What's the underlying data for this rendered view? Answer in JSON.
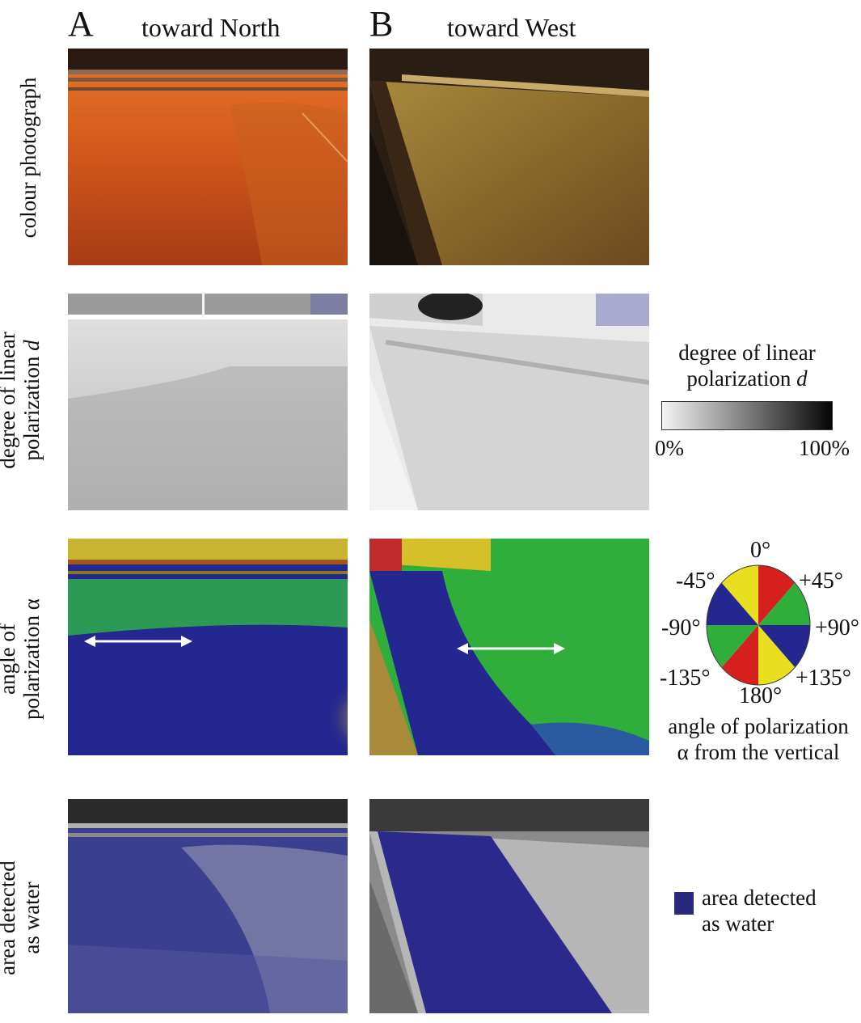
{
  "columns": [
    {
      "letter": "A",
      "title": "toward North"
    },
    {
      "letter": "B",
      "title": "toward West"
    }
  ],
  "rows": [
    {
      "label_line1": "colour photograph",
      "label_line2": ""
    },
    {
      "label_line1": "degree of linear",
      "label_line2": "polarization d"
    },
    {
      "label_line1": "angle of",
      "label_line2": "polarization α"
    },
    {
      "label_line1": "area detected",
      "label_line2": "as water"
    }
  ],
  "dop_legend": {
    "title_line1": "degree of linear",
    "title_line2": "polarization d",
    "min_label": "0%",
    "max_label": "100%",
    "gradient_from": "#f4f4f4",
    "gradient_to": "#050505"
  },
  "aop_legend": {
    "labels": {
      "top": "0°",
      "top_left": "-45°",
      "top_right": "+45°",
      "left": "-90°",
      "right": "+90°",
      "bottom_left": "-135°",
      "bottom_right": "+135°",
      "bottom": "180°"
    },
    "caption_line1": "angle of polarization",
    "caption_line2": "α from the vertical",
    "colors": {
      "red": "#d61f1f",
      "yellow": "#e8e01e",
      "green": "#2fae3c",
      "blue": "#24278f"
    }
  },
  "water_legend": {
    "line1": "area detected",
    "line2": "as water",
    "swatch_color": "#29287f"
  }
}
